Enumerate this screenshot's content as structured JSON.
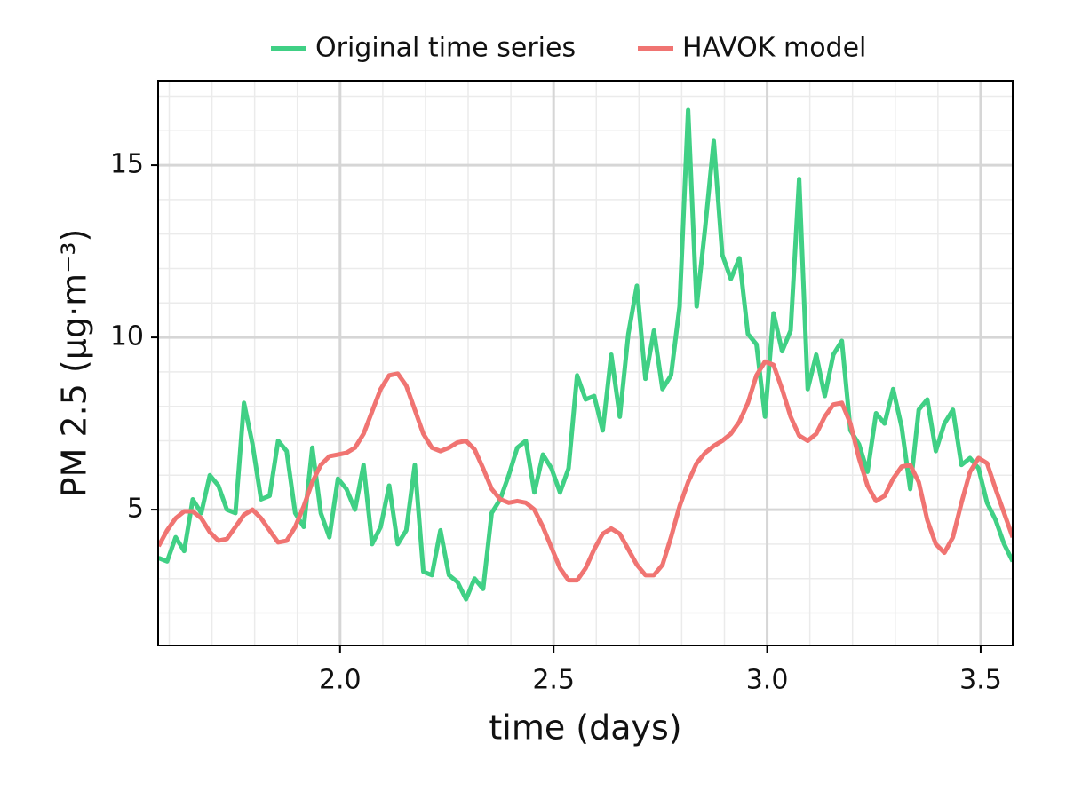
{
  "chart_data": {
    "type": "line",
    "xlabel": "time (days)",
    "ylabel": "PM 2.5 (μg·m⁻³)",
    "xlim": [
      1.574,
      3.575
    ],
    "ylim": [
      1.06,
      17.45
    ],
    "xticks": [
      {
        "value": 2,
        "label": "2.0"
      },
      {
        "value": 2.5,
        "label": "2.5"
      },
      {
        "value": 3,
        "label": "3.0"
      },
      {
        "value": 3.5,
        "label": "3.5"
      }
    ],
    "yticks": [
      5,
      10,
      15
    ],
    "xminorticks": [
      1.6,
      1.7,
      1.8,
      1.9,
      2.1,
      2.2,
      2.3,
      2.4,
      2.6,
      2.7,
      2.8,
      2.9,
      3.1,
      3.2,
      3.3,
      3.4
    ],
    "yminorticks": [
      2,
      3,
      4,
      6,
      7,
      8,
      9,
      11,
      12,
      13,
      14,
      16,
      17
    ],
    "grid": true,
    "legend": "top",
    "x": [
      1.575,
      1.595,
      1.615,
      1.635,
      1.655,
      1.675,
      1.695,
      1.715,
      1.735,
      1.755,
      1.775,
      1.795,
      1.815,
      1.835,
      1.855,
      1.875,
      1.895,
      1.915,
      1.935,
      1.955,
      1.975,
      1.995,
      2.015,
      2.035,
      2.055,
      2.075,
      2.095,
      2.115,
      2.135,
      2.155,
      2.175,
      2.195,
      2.215,
      2.235,
      2.255,
      2.275,
      2.295,
      2.315,
      2.335,
      2.355,
      2.375,
      2.395,
      2.415,
      2.435,
      2.455,
      2.475,
      2.495,
      2.515,
      2.535,
      2.555,
      2.575,
      2.595,
      2.615,
      2.635,
      2.655,
      2.675,
      2.695,
      2.715,
      2.735,
      2.755,
      2.775,
      2.795,
      2.815,
      2.835,
      2.855,
      2.875,
      2.895,
      2.915,
      2.935,
      2.955,
      2.975,
      2.995,
      3.015,
      3.035,
      3.055,
      3.075,
      3.095,
      3.115,
      3.135,
      3.155,
      3.175,
      3.195,
      3.215,
      3.235,
      3.255,
      3.275,
      3.295,
      3.315,
      3.335,
      3.355,
      3.375,
      3.395,
      3.415,
      3.435,
      3.455,
      3.475,
      3.495,
      3.515,
      3.535,
      3.555,
      3.575
    ],
    "series": [
      {
        "name": "Original time series",
        "color": "#40d085",
        "values": [
          3.6,
          3.5,
          4.2,
          3.8,
          5.3,
          4.9,
          6.0,
          5.7,
          5.0,
          4.9,
          8.1,
          6.9,
          5.3,
          5.4,
          7.0,
          6.7,
          4.9,
          4.5,
          6.8,
          4.9,
          4.2,
          5.9,
          5.6,
          5.0,
          6.3,
          4.0,
          4.5,
          5.7,
          4.0,
          4.4,
          6.3,
          3.2,
          3.1,
          4.4,
          3.1,
          2.9,
          2.4,
          3.0,
          2.7,
          4.9,
          5.3,
          6.0,
          6.8,
          7.0,
          5.5,
          6.6,
          6.2,
          5.5,
          6.2,
          8.9,
          8.2,
          8.3,
          7.3,
          9.5,
          7.7,
          10.1,
          11.5,
          8.8,
          10.2,
          8.5,
          8.9,
          10.9,
          16.6,
          10.9,
          13.2,
          15.7,
          12.4,
          11.7,
          12.3,
          10.1,
          9.8,
          7.7,
          10.7,
          9.6,
          10.2,
          14.6,
          8.5,
          9.5,
          8.3,
          9.5,
          9.9,
          7.3,
          6.9,
          6.1,
          7.8,
          7.5,
          8.5,
          7.4,
          5.6,
          7.9,
          8.2,
          6.7,
          7.5,
          7.9,
          6.3,
          6.5,
          6.2,
          5.2,
          4.7,
          4.0,
          3.5
        ]
      },
      {
        "name": "HAVOK model",
        "color": "#f07472",
        "values": [
          3.94,
          4.4,
          4.75,
          4.95,
          4.95,
          4.75,
          4.35,
          4.1,
          4.15,
          4.5,
          4.85,
          5.0,
          4.75,
          4.4,
          4.05,
          4.1,
          4.5,
          5.1,
          5.8,
          6.3,
          6.55,
          6.6,
          6.65,
          6.8,
          7.2,
          7.85,
          8.5,
          8.9,
          8.95,
          8.6,
          7.9,
          7.2,
          6.8,
          6.7,
          6.8,
          6.95,
          7.0,
          6.75,
          6.2,
          5.6,
          5.3,
          5.2,
          5.25,
          5.2,
          5.0,
          4.5,
          3.9,
          3.3,
          2.95,
          2.95,
          3.3,
          3.85,
          4.3,
          4.45,
          4.3,
          3.85,
          3.4,
          3.1,
          3.1,
          3.4,
          4.2,
          5.1,
          5.8,
          6.35,
          6.65,
          6.85,
          7.0,
          7.2,
          7.55,
          8.1,
          8.9,
          9.3,
          9.2,
          8.5,
          7.7,
          7.15,
          7.0,
          7.2,
          7.7,
          8.05,
          8.1,
          7.5,
          6.5,
          5.7,
          5.25,
          5.4,
          5.9,
          6.25,
          6.3,
          5.8,
          4.7,
          4.0,
          3.75,
          4.2,
          5.2,
          6.1,
          6.5,
          6.35,
          5.6,
          4.9,
          4.2
        ]
      }
    ]
  }
}
